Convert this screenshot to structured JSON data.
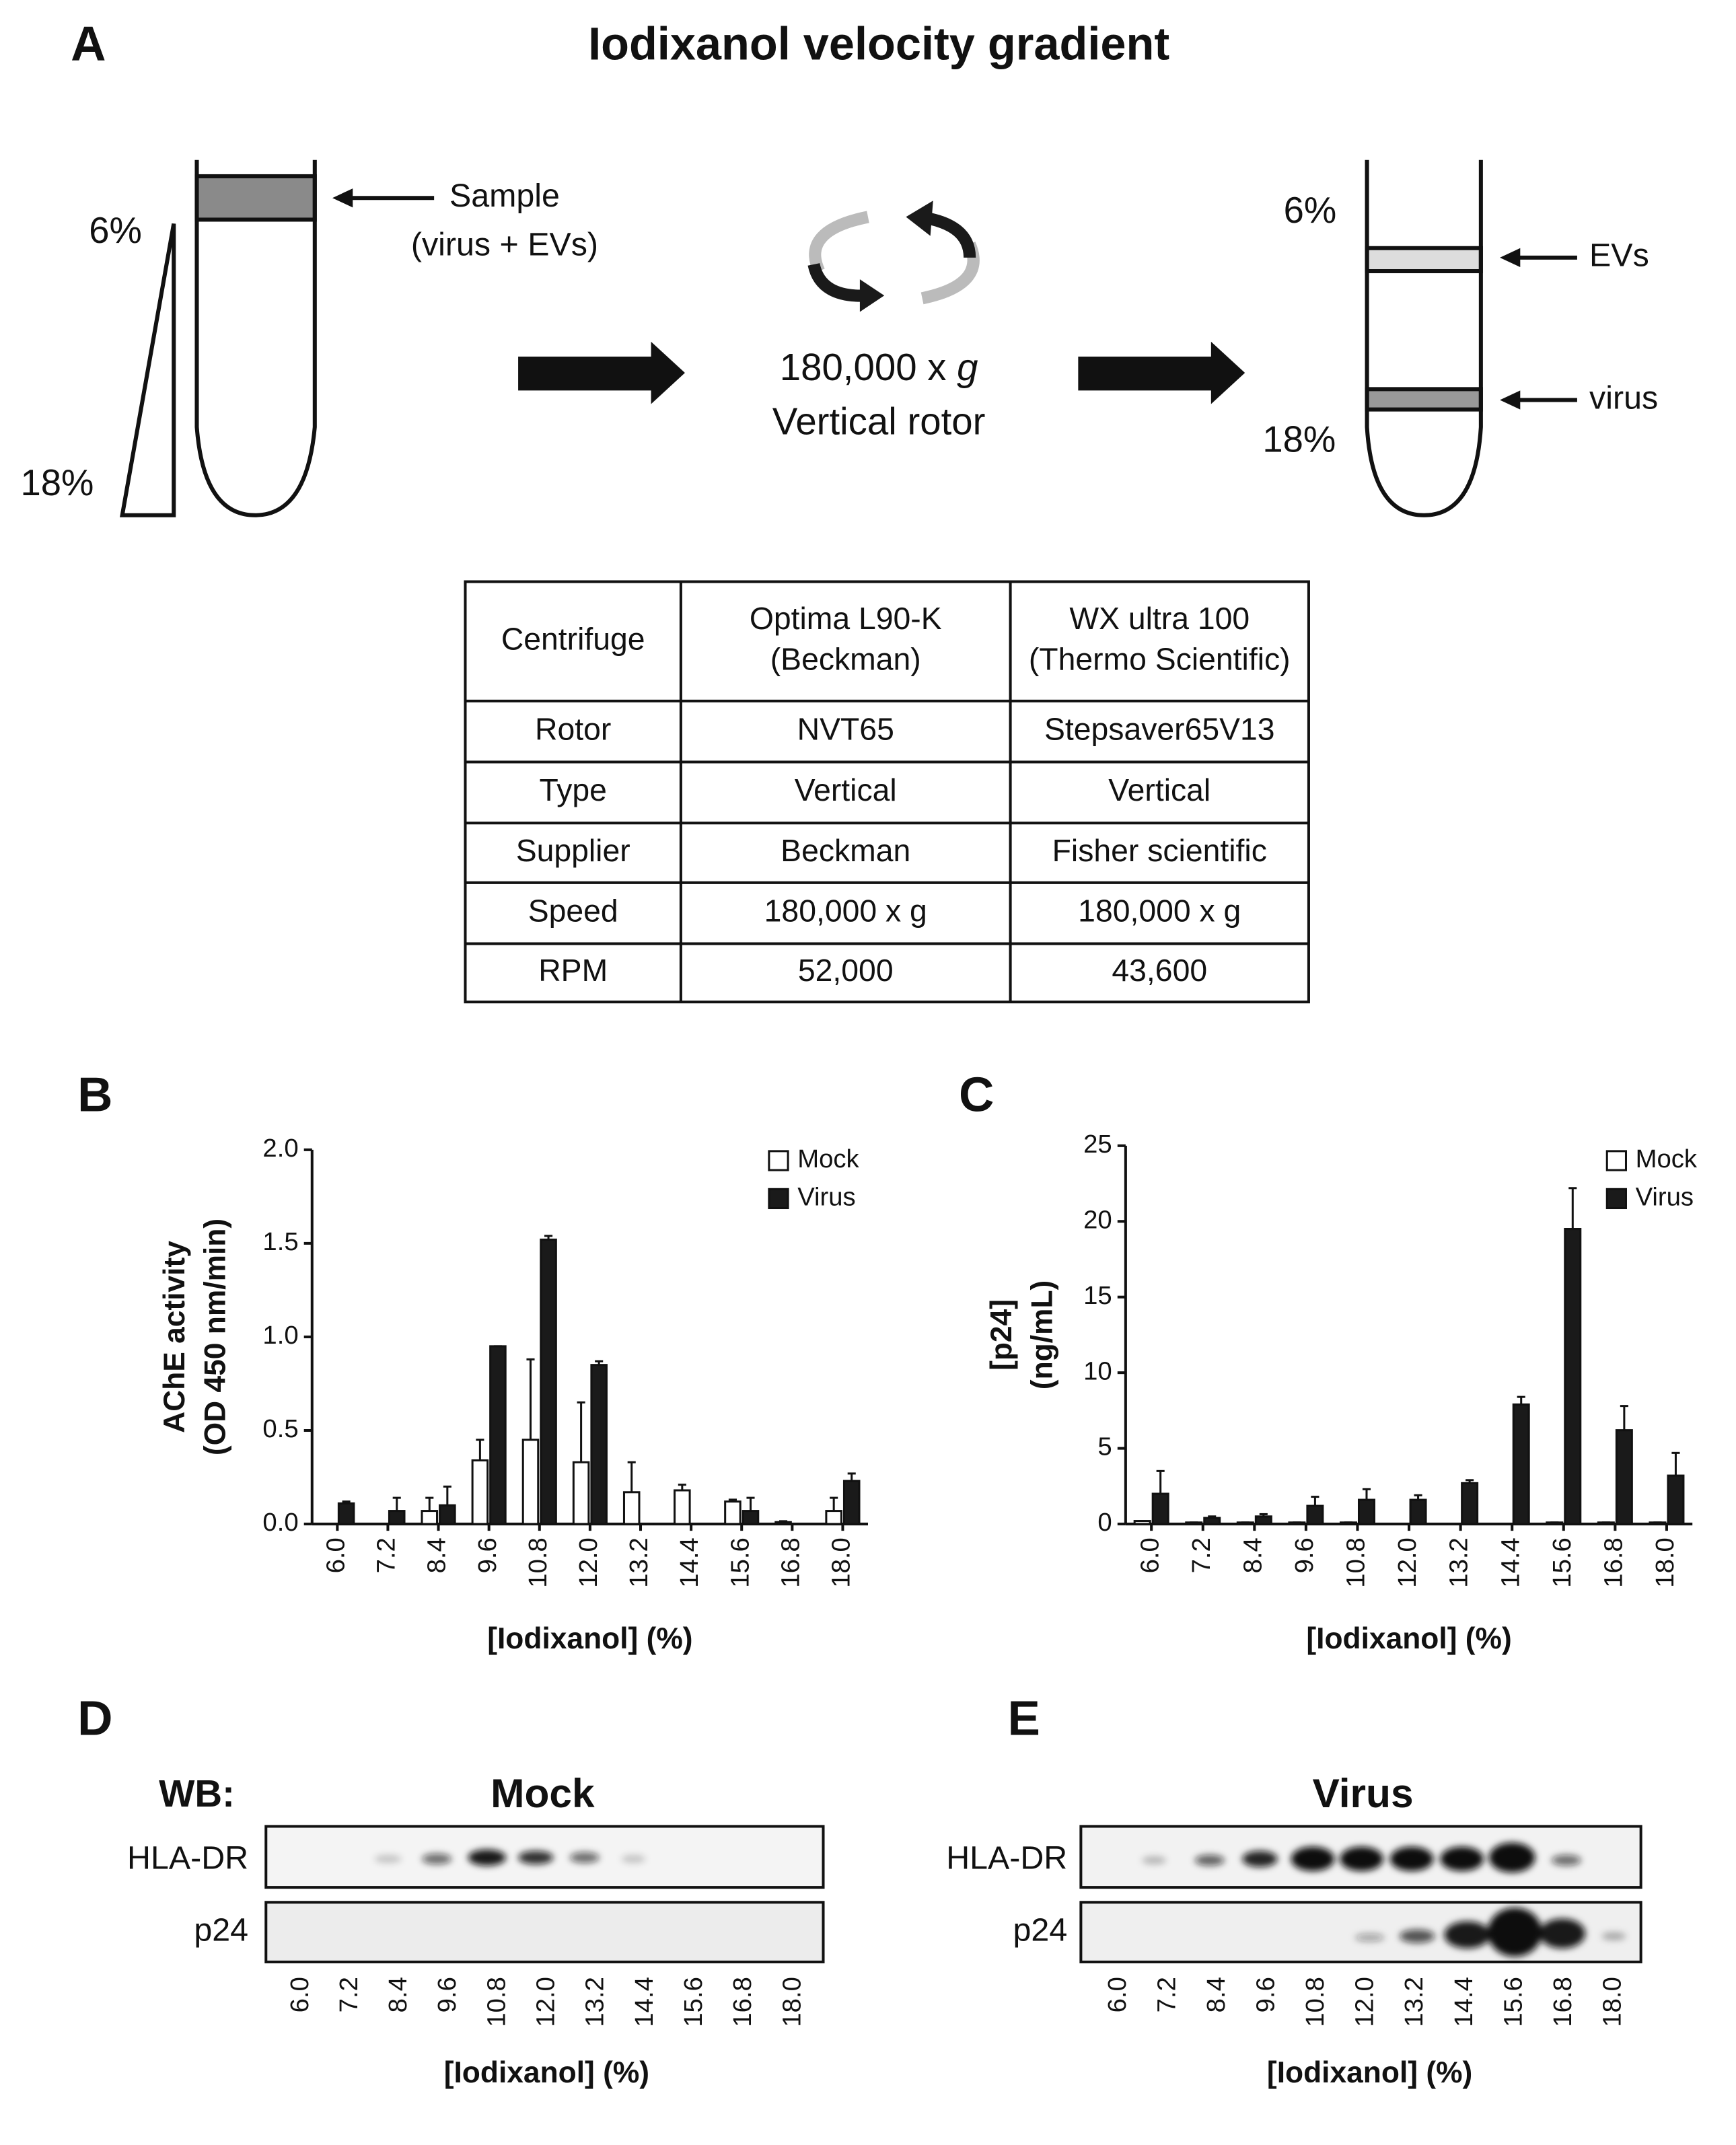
{
  "panel_a": {
    "label": "A",
    "title": "Iodixanol velocity gradient",
    "left_tube": {
      "top_percent": "6%",
      "bottom_percent": "18%",
      "sample": "Sample",
      "sample_note": "(virus + EVs)"
    },
    "centrifugation": {
      "speed": "180,000 x",
      "speed_unit": "g",
      "rotor": "Vertical rotor"
    },
    "right_tube": {
      "top_percent": "6%",
      "bottom_percent": "18%",
      "upper_band": "EVs",
      "lower_band": "virus"
    }
  },
  "table": {
    "rows": [
      [
        [
          "Centrifuge"
        ],
        [
          "Optima L90-K",
          "(Beckman)"
        ],
        [
          "WX ultra 100",
          "(Thermo Scientific)"
        ]
      ],
      [
        [
          "Rotor"
        ],
        [
          "NVT65"
        ],
        [
          "Stepsaver65V13"
        ]
      ],
      [
        [
          "Type"
        ],
        [
          "Vertical"
        ],
        [
          "Vertical"
        ]
      ],
      [
        [
          "Supplier"
        ],
        [
          "Beckman"
        ],
        [
          "Fisher scientific"
        ]
      ],
      [
        [
          "Speed"
        ],
        [
          "180,000 x g"
        ],
        [
          "180,000 x g"
        ]
      ],
      [
        [
          "RPM"
        ],
        [
          "52,000"
        ],
        [
          "43,600"
        ]
      ]
    ]
  },
  "chart_data": [
    {
      "type": "bar",
      "panel": "B",
      "categories": [
        "6.0",
        "7.2",
        "8.4",
        "9.6",
        "10.8",
        "12.0",
        "13.2",
        "14.4",
        "15.6",
        "16.8",
        "18.0"
      ],
      "series": [
        {
          "name": "Mock",
          "color": "#ffffff",
          "values": [
            0,
            0,
            0.07,
            0.34,
            0.45,
            0.33,
            0.17,
            0.18,
            0.12,
            0.01,
            0.07
          ],
          "errors": [
            0,
            0,
            0.07,
            0.11,
            0.43,
            0.32,
            0.16,
            0.03,
            0.01,
            0.005,
            0.07
          ]
        },
        {
          "name": "Virus",
          "color": "#1a1a1a",
          "values": [
            0.11,
            0.07,
            0.1,
            0.95,
            1.52,
            0.85,
            0,
            0,
            0.07,
            0,
            0.23
          ],
          "errors": [
            0.01,
            0.07,
            0.1,
            0,
            0.02,
            0.02,
            0,
            0,
            0.07,
            0,
            0.04
          ]
        }
      ],
      "ylim": [
        0,
        2
      ],
      "yticks": [
        {
          "value": 0,
          "label": "0.0"
        },
        {
          "value": 0.5,
          "label": "0.5"
        },
        {
          "value": 1,
          "label": "1.0"
        },
        {
          "value": 1.5,
          "label": "1.5"
        },
        {
          "value": 2,
          "label": "2.0"
        }
      ],
      "ylabel": [
        "AChE activity",
        "(OD 450 nm/min)"
      ],
      "xlabel": "[Iodixanol] (%)",
      "legend": "upper right"
    },
    {
      "type": "bar",
      "panel": "C",
      "categories": [
        "6.0",
        "7.2",
        "8.4",
        "9.6",
        "10.8",
        "12.0",
        "13.2",
        "14.4",
        "15.6",
        "16.8",
        "18.0"
      ],
      "series": [
        {
          "name": "Mock",
          "color": "#ffffff",
          "values": [
            0.2,
            0.1,
            0.1,
            0.1,
            0.1,
            0,
            0,
            0,
            0.1,
            0.1,
            0.1
          ],
          "errors": [
            0,
            0,
            0,
            0,
            0,
            0,
            0,
            0,
            0,
            0,
            0
          ]
        },
        {
          "name": "Virus",
          "color": "#1a1a1a",
          "values": [
            2.0,
            0.4,
            0.5,
            1.2,
            1.6,
            1.6,
            2.7,
            7.9,
            19.5,
            6.2,
            3.2
          ],
          "errors": [
            1.5,
            0.1,
            0.15,
            0.6,
            0.7,
            0.3,
            0.2,
            0.5,
            2.7,
            1.6,
            1.5
          ]
        }
      ],
      "ylim": [
        0,
        25
      ],
      "yticks": [
        0,
        5,
        10,
        15,
        20,
        25
      ],
      "ylabel": [
        "[p24]",
        "(ng/mL)"
      ],
      "xlabel": "[Iodixanol] (%)",
      "legend": "upper right"
    }
  ],
  "panel_d": {
    "label": "D",
    "method": "WB:",
    "title": "Mock",
    "rows": [
      "HLA-DR",
      "p24"
    ],
    "lanes": [
      "6.0",
      "7.2",
      "8.4",
      "9.6",
      "10.8",
      "12.0",
      "13.2",
      "14.4",
      "15.6",
      "16.8",
      "18.0"
    ],
    "xlabel": "[Iodixanol] (%)"
  },
  "panel_e": {
    "label": "E",
    "title": "Virus",
    "rows": [
      "HLA-DR",
      "p24"
    ],
    "lanes": [
      "6.0",
      "7.2",
      "8.4",
      "9.6",
      "10.8",
      "12.0",
      "13.2",
      "14.4",
      "15.6",
      "16.8",
      "18.0"
    ],
    "xlabel": "[Iodixanol] (%)"
  }
}
